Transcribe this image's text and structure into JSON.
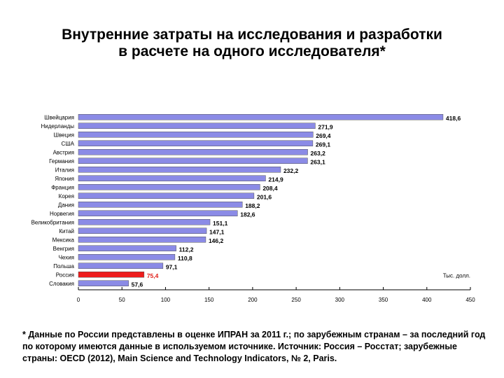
{
  "title_line1": "Внутренние затраты на исследования и разработки",
  "title_line2": "в расчете на одного исследователя*",
  "footnote": "* Данные по России представлены в оценке ИПРАН за 2011 г.; по зарубежным странам – за последний год по которому имеются данные в используемом источнике. Источник: Россия – Росстат; зарубежные страны: OECD (2012), Main Science and Technology Indicators, № 2, Paris.",
  "colors": {
    "bar": "#8b8be6",
    "highlight": "#ee1c1c",
    "highlight_label": "#e0201a"
  },
  "chart_data": {
    "type": "bar",
    "orientation": "horizontal",
    "title": "Внутренние затраты на исследования и разработки в расчете на одного исследователя*",
    "unit_label": "Тыс. долл.",
    "categories": [
      "Швейцария",
      "Нидерланды",
      "Швеция",
      "США",
      "Австрия",
      "Германия",
      "Италия",
      "Япония",
      "Франция",
      "Корея",
      "Дания",
      "Норвегия",
      "Великобритания",
      "Китай",
      "Мексика",
      "Венгрия",
      "Чехия",
      "Польша",
      "Россия",
      "Словакия"
    ],
    "values": [
      418.6,
      271.9,
      269.4,
      269.1,
      263.2,
      263.1,
      232.2,
      214.9,
      208.4,
      201.6,
      188.2,
      182.6,
      151.1,
      147.1,
      146.2,
      112.2,
      110.8,
      97.1,
      75.4,
      57.6
    ],
    "value_labels": [
      "418,6",
      "271,9",
      "269,4",
      "269,1",
      "263,2",
      "263,1",
      "232,2",
      "214,9",
      "208,4",
      "201,6",
      "188,2",
      "182,6",
      "151,1",
      "147,1",
      "146,2",
      "112,2",
      "110,8",
      "97,1",
      "75,4",
      "57,6"
    ],
    "highlight_category": "Россия",
    "xlim": [
      0,
      450
    ],
    "xticks": [
      0,
      50,
      100,
      150,
      200,
      250,
      300,
      350,
      400,
      450
    ],
    "xtick_labels": [
      "0",
      "50",
      "100",
      "150",
      "200",
      "250",
      "300",
      "350",
      "400",
      "450"
    ]
  }
}
